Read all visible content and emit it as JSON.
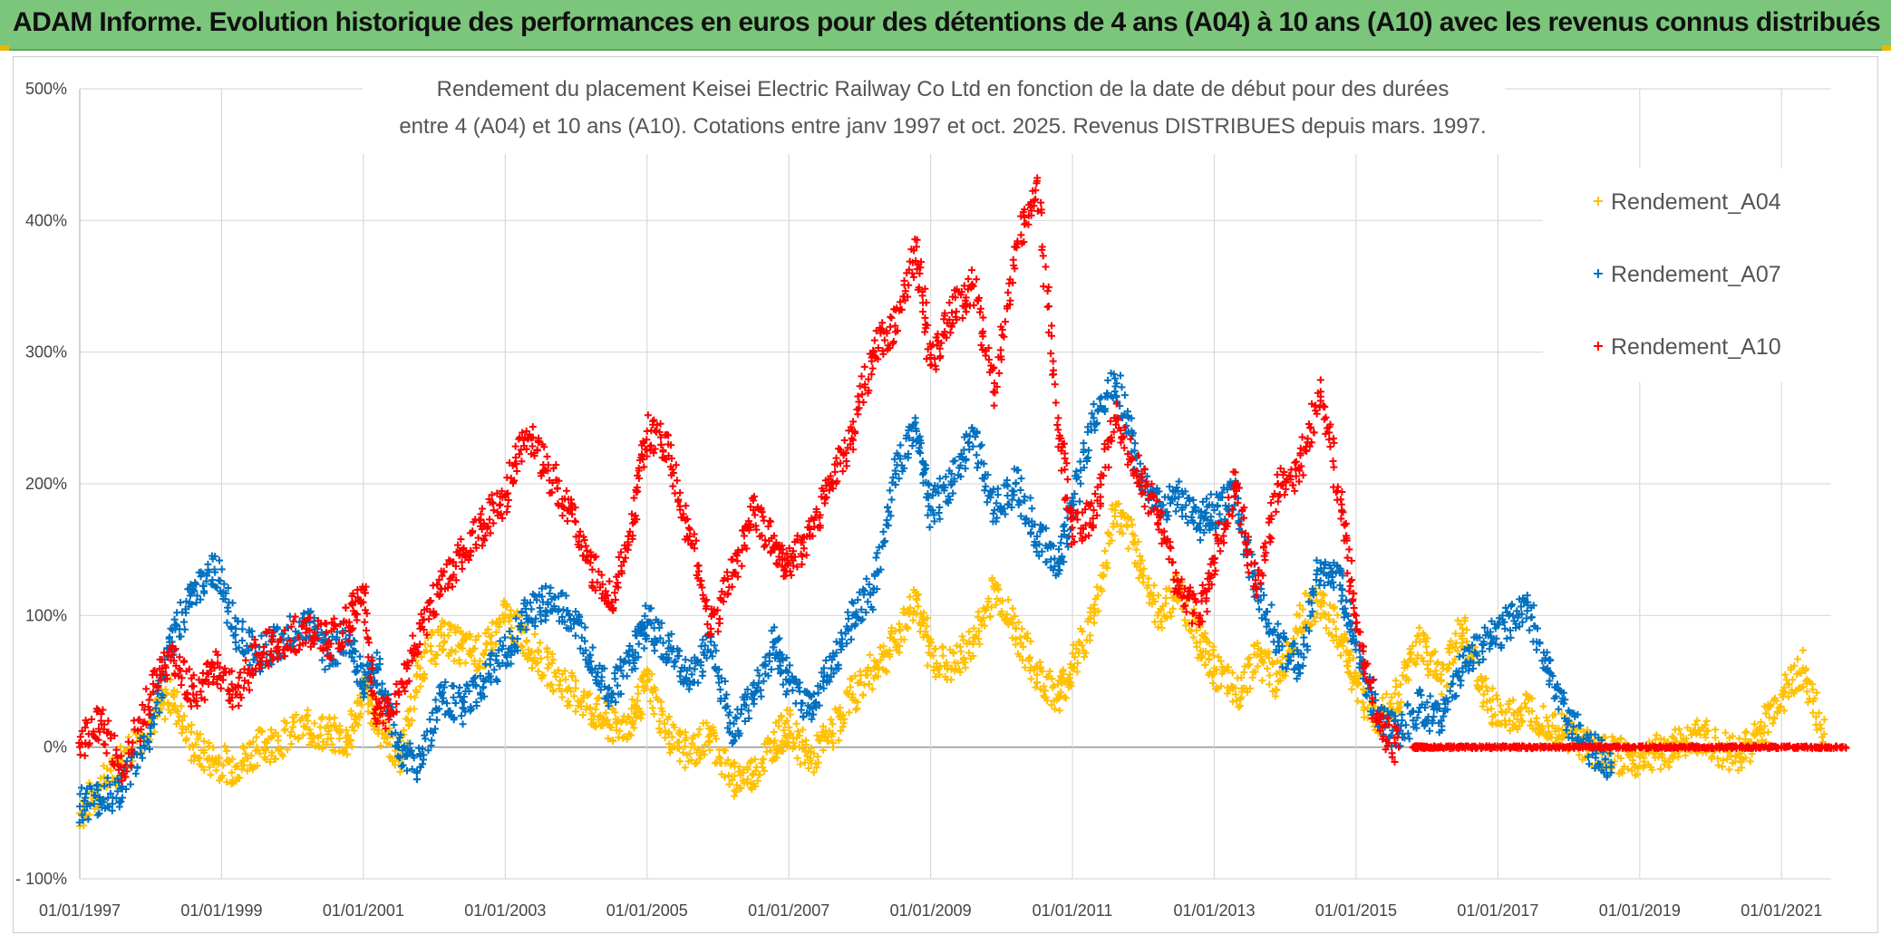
{
  "banner": {
    "title": "ADAM Informe. Evolution historique des performances en euros pour des détentions de 4 ans (A04) à 10 ans (A10) avec les revenus connus distribués"
  },
  "colors": {
    "banner_bg": "#7bc67b",
    "A04": "#ffc000",
    "A07": "#0070c0",
    "A10": "#ff0000",
    "grid": "#d9d9d9"
  },
  "chart_data": {
    "type": "scatter",
    "title_lines": [
      "Rendement du placement Keisei Electric Railway Co Ltd en fonction de la date de début pour des durées",
      "entre 4 (A04) et 10 ans (A10). Cotations entre janv 1997 et oct. 2025. Revenus DISTRIBUES depuis mars. 1997."
    ],
    "x_tick_labels": [
      "01/01/1997",
      "01/01/1999",
      "01/01/2001",
      "01/01/2003",
      "01/01/2005",
      "01/01/2007",
      "01/01/2009",
      "01/01/2011",
      "01/01/2013",
      "01/01/2015",
      "01/01/2017",
      "01/01/2019",
      "01/01/2021"
    ],
    "y_tick_labels": [
      "- 100%",
      "0%",
      "100%",
      "200%",
      "300%",
      "400%",
      "500%"
    ],
    "x_range": [
      "01/01/1997",
      "01/09/2021"
    ],
    "ylim": [
      -100,
      500
    ],
    "grid": true,
    "legend_position": "right",
    "series": [
      {
        "name": "Rendement_A04",
        "color": "#ffc000",
        "x": [
          1997.0,
          1997.3,
          1997.6,
          1998.0,
          1998.3,
          1998.6,
          1998.9,
          1999.2,
          1999.5,
          1999.8,
          2000.2,
          2000.5,
          2000.8,
          2001.0,
          2001.2,
          2001.5,
          2001.8,
          2002.1,
          2002.4,
          2002.7,
          2003.0,
          2003.3,
          2003.6,
          2003.9,
          2004.2,
          2004.5,
          2004.8,
          2005.0,
          2005.3,
          2005.6,
          2005.9,
          2006.2,
          2006.5,
          2006.8,
          2007.0,
          2007.3,
          2007.6,
          2007.9,
          2008.2,
          2008.5,
          2008.8,
          2009.0,
          2009.3,
          2009.6,
          2009.9,
          2010.2,
          2010.5,
          2010.8,
          2011.0,
          2011.3,
          2011.6,
          2011.9,
          2012.2,
          2012.5,
          2012.8,
          2013.0,
          2013.3,
          2013.6,
          2013.9,
          2014.2,
          2014.5,
          2014.8,
          2015.0,
          2015.3,
          2015.6,
          2015.9,
          2016.2,
          2016.5,
          2016.8,
          2017.1,
          2017.4,
          2017.7,
          2018.0,
          2018.3,
          2018.6,
          2018.9,
          2019.2,
          2019.5,
          2019.8,
          2020.1,
          2020.4,
          2020.7,
          2021.0,
          2021.3,
          2021.6
        ],
        "y": [
          -50,
          -30,
          -10,
          20,
          40,
          0,
          -10,
          -15,
          0,
          5,
          15,
          10,
          5,
          45,
          20,
          -10,
          60,
          85,
          75,
          70,
          100,
          80,
          60,
          45,
          30,
          15,
          20,
          50,
          10,
          -5,
          10,
          -25,
          -20,
          5,
          15,
          -10,
          10,
          40,
          60,
          80,
          115,
          70,
          60,
          80,
          120,
          90,
          55,
          40,
          60,
          100,
          180,
          150,
          100,
          120,
          80,
          60,
          40,
          70,
          50,
          100,
          110,
          80,
          50,
          20,
          40,
          80,
          50,
          90,
          40,
          20,
          30,
          20,
          10,
          0,
          -5,
          -10,
          -5,
          0,
          10,
          0,
          -5,
          10,
          40,
          60,
          10
        ]
      },
      {
        "name": "Rendement_A07",
        "color": "#0070c0",
        "x": [
          1997.0,
          1997.3,
          1997.6,
          1998.0,
          1998.3,
          1998.6,
          1998.9,
          1999.2,
          1999.5,
          1999.8,
          2000.2,
          2000.5,
          2000.8,
          2001.0,
          2001.2,
          2001.5,
          2001.8,
          2002.1,
          2002.4,
          2002.7,
          2003.0,
          2003.3,
          2003.6,
          2003.9,
          2004.2,
          2004.5,
          2004.8,
          2005.0,
          2005.3,
          2005.6,
          2005.9,
          2006.2,
          2006.5,
          2006.8,
          2007.0,
          2007.3,
          2007.6,
          2007.9,
          2008.2,
          2008.5,
          2008.8,
          2009.0,
          2009.3,
          2009.6,
          2009.9,
          2010.2,
          2010.5,
          2010.8,
          2011.0,
          2011.3,
          2011.6,
          2011.9,
          2012.2,
          2012.5,
          2012.8,
          2013.0,
          2013.3,
          2013.6,
          2013.9,
          2014.2,
          2014.5,
          2014.8,
          2015.0,
          2015.3,
          2015.6,
          2015.9,
          2016.2,
          2016.5,
          2016.8,
          2017.1,
          2017.4,
          2017.7,
          2018.0,
          2018.3,
          2018.6
        ],
        "y": [
          -45,
          -40,
          -30,
          10,
          80,
          120,
          135,
          90,
          70,
          80,
          95,
          70,
          85,
          50,
          60,
          0,
          -15,
          40,
          30,
          50,
          70,
          100,
          110,
          100,
          70,
          40,
          70,
          95,
          75,
          50,
          80,
          10,
          40,
          80,
          50,
          30,
          60,
          100,
          120,
          210,
          240,
          180,
          200,
          240,
          180,
          200,
          160,
          140,
          180,
          250,
          280,
          220,
          180,
          190,
          170,
          180,
          190,
          120,
          80,
          60,
          140,
          120,
          80,
          20,
          10,
          30,
          20,
          60,
          80,
          90,
          110,
          60,
          20,
          0,
          -15
        ]
      },
      {
        "name": "Rendement_A10",
        "color": "#ff0000",
        "x": [
          1997.0,
          1997.3,
          1997.6,
          1998.0,
          1998.3,
          1998.6,
          1998.9,
          1999.2,
          1999.5,
          1999.8,
          2000.2,
          2000.5,
          2000.8,
          2001.0,
          2001.2,
          2001.5,
          2001.8,
          2002.1,
          2002.4,
          2002.7,
          2003.0,
          2003.3,
          2003.6,
          2003.9,
          2004.2,
          2004.5,
          2004.8,
          2005.0,
          2005.3,
          2005.6,
          2005.9,
          2006.2,
          2006.5,
          2006.8,
          2007.0,
          2007.3,
          2007.6,
          2007.9,
          2008.2,
          2008.5,
          2008.8,
          2009.0,
          2009.3,
          2009.6,
          2009.9,
          2010.2,
          2010.5,
          2010.8,
          2011.0,
          2011.3,
          2011.6,
          2011.9,
          2012.2,
          2012.5,
          2012.8,
          2013.0,
          2013.3,
          2013.6,
          2013.9,
          2014.2,
          2014.5,
          2014.8,
          2015.0,
          2015.3,
          2015.6
        ],
        "y": [
          0,
          20,
          -20,
          40,
          70,
          40,
          60,
          40,
          70,
          80,
          90,
          80,
          95,
          120,
          20,
          40,
          90,
          120,
          150,
          170,
          190,
          240,
          210,
          180,
          140,
          110,
          170,
          240,
          230,
          160,
          90,
          130,
          180,
          150,
          140,
          160,
          200,
          240,
          300,
          320,
          380,
          290,
          330,
          350,
          270,
          380,
          430,
          250,
          160,
          180,
          250,
          210,
          180,
          120,
          100,
          140,
          200,
          120,
          200,
          210,
          270,
          180,
          100,
          20,
          0
        ]
      },
      {
        "name": "",
        "color": "#ff0000",
        "note": "",
        "x": [
          2015.8,
          2016.0,
          2016.5,
          2017.0,
          2017.5,
          2018.0,
          2018.5,
          2019.0,
          2019.5,
          2020.0,
          2020.5,
          2021.0,
          2021.5,
          2021.9
        ],
        "y": [
          0,
          0,
          0,
          0,
          0,
          0,
          0,
          0,
          0,
          0,
          0,
          0,
          0,
          0
        ]
      }
    ]
  }
}
